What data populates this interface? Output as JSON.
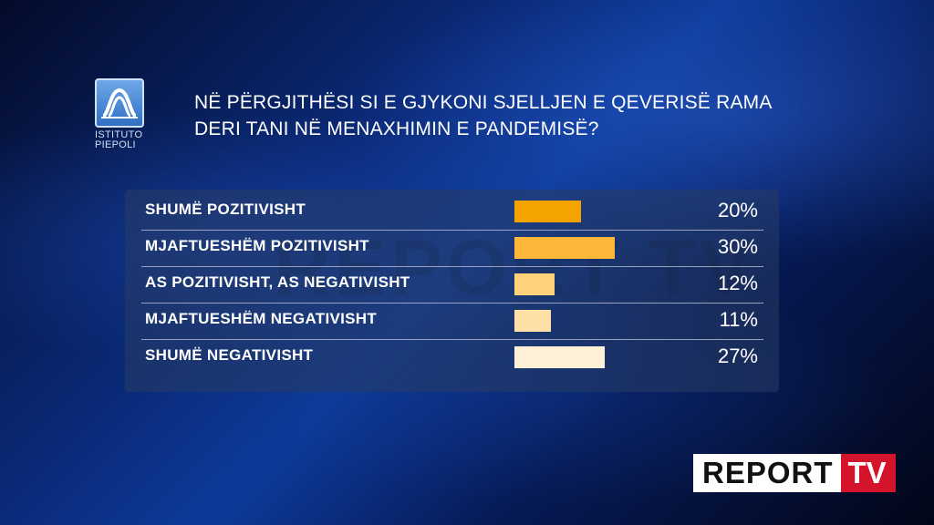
{
  "logo": {
    "line1": "ISTITUTO",
    "line2": "PIEPOLI"
  },
  "title_line1": "NË PËRGJITHËSI SI E GJYKONI SJELLJEN E QEVERISË RAMA",
  "title_line2": "DERI TANI NË MENAXHIMIN E PANDEMISË?",
  "chart_data": {
    "type": "bar",
    "orientation": "horizontal",
    "categories": [
      "SHUMË POZITIVISHT",
      "MJAFTUESHËM POZITIVISHT",
      "AS POZITIVISHT, AS NEGATIVISHT",
      "MJAFTUESHËM NEGATIVISHT",
      "SHUMË NEGATIVISHT"
    ],
    "values": [
      20,
      30,
      12,
      11,
      27
    ],
    "value_labels": [
      "20%",
      "30%",
      "12%",
      "11%",
      "27%"
    ],
    "colors": [
      "#f5a300",
      "#fdb83a",
      "#fdd27a",
      "#fde0a8",
      "#fff0d8"
    ],
    "xlim": [
      0,
      30
    ],
    "grid": false
  },
  "watermark": "REPORT TV",
  "brand": {
    "report": "REPORT",
    "tv": "TV"
  }
}
